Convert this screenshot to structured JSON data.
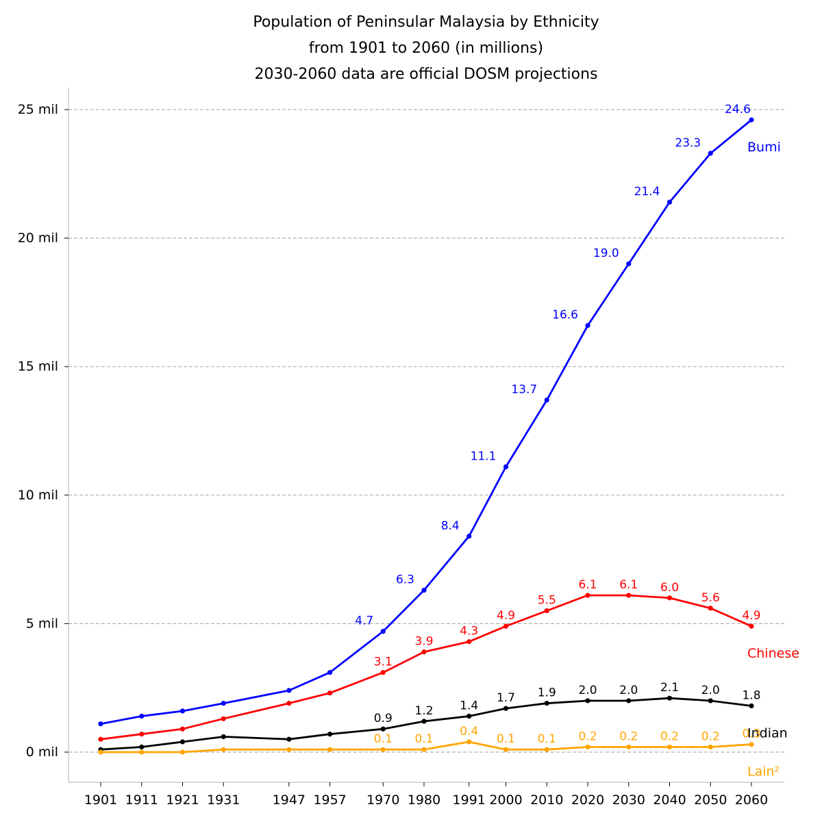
{
  "chart_data": {
    "type": "line",
    "title": "Population of Peninsular Malaysia by Ethnicity",
    "subtitle": "from 1901 to 2060 (in millions)",
    "subtitle2": "2030-2060 data are official DOSM projections",
    "x": [
      1901,
      1911,
      1921,
      1931,
      1947,
      1957,
      1970,
      1980,
      1991,
      2000,
      2010,
      2020,
      2030,
      2040,
      2050,
      2060
    ],
    "ylim": [
      -1.2,
      25.8
    ],
    "yticks": [
      0,
      5,
      10,
      15,
      20,
      25
    ],
    "ytick_labels": [
      "0 mil",
      "5 mil",
      "10 mil",
      "15 mil",
      "20 mil",
      "25 mil"
    ],
    "grid": "y dashed",
    "series": [
      {
        "name": "Bumi",
        "color": "#0000ff",
        "values": [
          1.1,
          1.4,
          1.6,
          1.9,
          2.4,
          3.1,
          4.7,
          6.3,
          8.4,
          11.1,
          13.7,
          16.6,
          19.0,
          21.4,
          23.3,
          24.6
        ],
        "labels": [
          null,
          null,
          null,
          null,
          null,
          null,
          "4.7",
          "6.3",
          "8.4",
          "11.1",
          "13.7",
          "16.6",
          "19.0",
          "21.4",
          "23.3",
          "24.6"
        ]
      },
      {
        "name": "Chinese",
        "color": "#ff0000",
        "values": [
          0.5,
          0.7,
          0.9,
          1.3,
          1.9,
          2.3,
          3.1,
          3.9,
          4.3,
          4.9,
          5.5,
          6.1,
          6.1,
          6.0,
          5.6,
          4.9
        ],
        "labels": [
          null,
          null,
          null,
          null,
          null,
          null,
          "3.1",
          "3.9",
          "4.3",
          "4.9",
          "5.5",
          "6.1",
          "6.1",
          "6.0",
          "5.6",
          "4.9"
        ]
      },
      {
        "name": "Indian",
        "color": "#000000",
        "values": [
          0.1,
          0.2,
          0.4,
          0.6,
          0.5,
          0.7,
          0.9,
          1.2,
          1.4,
          1.7,
          1.9,
          2.0,
          2.0,
          2.1,
          2.0,
          1.8
        ],
        "labels": [
          null,
          null,
          null,
          null,
          null,
          null,
          "0.9",
          "1.2",
          "1.4",
          "1.7",
          "1.9",
          "2.0",
          "2.0",
          "2.1",
          "2.0",
          "1.8"
        ]
      },
      {
        "name": "Lain²",
        "color": "#ffa500",
        "values": [
          0.0,
          0.0,
          0.0,
          0.1,
          0.1,
          0.1,
          0.1,
          0.1,
          0.4,
          0.1,
          0.1,
          0.2,
          0.2,
          0.2,
          0.2,
          0.3
        ],
        "labels": [
          null,
          null,
          null,
          null,
          null,
          null,
          "0.1",
          "0.1",
          "0.4",
          "0.1",
          "0.1",
          "0.2",
          "0.2",
          "0.2",
          "0.2",
          "0.3"
        ]
      }
    ],
    "legend": "inline labels at right end of each line"
  }
}
